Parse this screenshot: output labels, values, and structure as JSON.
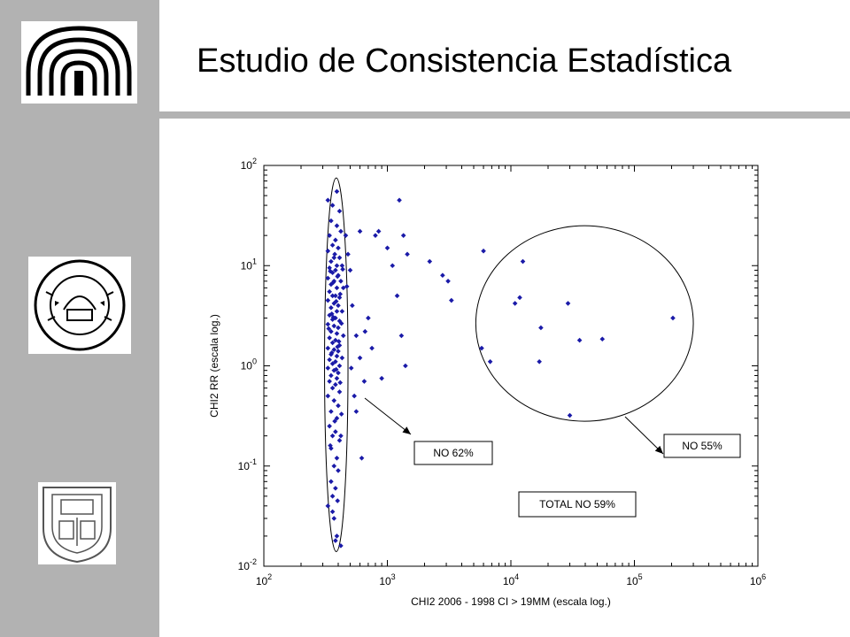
{
  "slide": {
    "title": "Estudio de Consistencia Estadística",
    "logos": [
      "dome-logo-icon",
      "ucv-seal-icon",
      "ucab-seal-icon"
    ]
  },
  "colors": {
    "sidebar": "#b2b2b2",
    "marker": "#1a1aa8",
    "text": "#000000"
  },
  "chart_data": {
    "type": "scatter",
    "xlabel": "CHI2 2006 - 1998 CI > 19MM (escala log.)",
    "ylabel": "CHI2 RR (escala log.)",
    "xscale": "log",
    "yscale": "log",
    "xlim": [
      100,
      1000000
    ],
    "ylim": [
      0.01,
      100
    ],
    "x_ticks": [
      {
        "value": 100,
        "base": "10",
        "exp": "2"
      },
      {
        "value": 1000,
        "base": "10",
        "exp": "3"
      },
      {
        "value": 10000,
        "base": "10",
        "exp": "4"
      },
      {
        "value": 100000,
        "base": "10",
        "exp": "5"
      },
      {
        "value": 1000000,
        "base": "10",
        "exp": "6"
      }
    ],
    "y_ticks": [
      {
        "value": 0.01,
        "base": "10",
        "exp": "-2"
      },
      {
        "value": 0.1,
        "base": "10",
        "exp": "-1"
      },
      {
        "value": 1,
        "base": "10",
        "exp": "0"
      },
      {
        "value": 10,
        "base": "10",
        "exp": "1"
      },
      {
        "value": 100,
        "base": "10",
        "exp": "2"
      }
    ],
    "grid": false,
    "annotations": {
      "cluster_left_label": "NO 62%",
      "cluster_right_label": "NO 55%",
      "total_label": "TOTAL NO 59%"
    },
    "ellipses": [
      {
        "name": "cluster-left",
        "cx": 380,
        "cy": 1.1,
        "x_min": 310,
        "x_max": 480,
        "y_min": 0.014,
        "y_max": 75
      },
      {
        "name": "cluster-right",
        "cx": 28000,
        "cy": 2.6,
        "x_min": 5200,
        "x_max": 300000,
        "y_min": 0.28,
        "y_max": 25
      }
    ],
    "points": [
      [
        390,
        55
      ],
      [
        330,
        45
      ],
      [
        360,
        40
      ],
      [
        410,
        35
      ],
      [
        350,
        28
      ],
      [
        390,
        25
      ],
      [
        420,
        22
      ],
      [
        340,
        20
      ],
      [
        380,
        18
      ],
      [
        360,
        16
      ],
      [
        400,
        15
      ],
      [
        330,
        14
      ],
      [
        370,
        12
      ],
      [
        410,
        12
      ],
      [
        350,
        11
      ],
      [
        390,
        10
      ],
      [
        430,
        10
      ],
      [
        340,
        9.5
      ],
      [
        380,
        9
      ],
      [
        360,
        8.5
      ],
      [
        400,
        8
      ],
      [
        330,
        7.5
      ],
      [
        370,
        7
      ],
      [
        420,
        7
      ],
      [
        350,
        6.5
      ],
      [
        390,
        6
      ],
      [
        440,
        6
      ],
      [
        340,
        5.5
      ],
      [
        380,
        5
      ],
      [
        360,
        5
      ],
      [
        410,
        4.8
      ],
      [
        330,
        4.5
      ],
      [
        370,
        4.2
      ],
      [
        400,
        4
      ],
      [
        350,
        3.8
      ],
      [
        390,
        3.5
      ],
      [
        430,
        3.5
      ],
      [
        340,
        3.2
      ],
      [
        380,
        3
      ],
      [
        360,
        2.9
      ],
      [
        410,
        2.8
      ],
      [
        330,
        2.6
      ],
      [
        370,
        2.5
      ],
      [
        400,
        2.4
      ],
      [
        350,
        2.2
      ],
      [
        390,
        2.1
      ],
      [
        440,
        2
      ],
      [
        340,
        1.9
      ],
      [
        380,
        1.8
      ],
      [
        360,
        1.7
      ],
      [
        410,
        1.6
      ],
      [
        330,
        1.5
      ],
      [
        370,
        1.45
      ],
      [
        400,
        1.4
      ],
      [
        350,
        1.3
      ],
      [
        390,
        1.25
      ],
      [
        430,
        1.2
      ],
      [
        340,
        1.15
      ],
      [
        380,
        1.1
      ],
      [
        360,
        1.05
      ],
      [
        410,
        1
      ],
      [
        330,
        0.95
      ],
      [
        370,
        0.9
      ],
      [
        400,
        0.85
      ],
      [
        350,
        0.8
      ],
      [
        390,
        0.75
      ],
      [
        340,
        0.7
      ],
      [
        380,
        0.65
      ],
      [
        360,
        0.6
      ],
      [
        410,
        0.55
      ],
      [
        330,
        0.5
      ],
      [
        370,
        0.45
      ],
      [
        400,
        0.4
      ],
      [
        350,
        0.35
      ],
      [
        390,
        0.3
      ],
      [
        340,
        0.25
      ],
      [
        380,
        0.22
      ],
      [
        360,
        0.2
      ],
      [
        410,
        0.18
      ],
      [
        350,
        0.15
      ],
      [
        390,
        0.12
      ],
      [
        370,
        0.1
      ],
      [
        400,
        0.09
      ],
      [
        350,
        0.07
      ],
      [
        380,
        0.06
      ],
      [
        360,
        0.05
      ],
      [
        330,
        0.04
      ],
      [
        370,
        0.03
      ],
      [
        390,
        0.02
      ],
      [
        380,
        0.018
      ],
      [
        420,
        0.016
      ],
      [
        360,
        0.035
      ],
      [
        395,
        0.045
      ],
      [
        345,
        0.16
      ],
      [
        375,
        0.28
      ],
      [
        425,
        0.33
      ],
      [
        355,
        3.3
      ],
      [
        385,
        4.4
      ],
      [
        415,
        5.2
      ],
      [
        365,
        6.8
      ],
      [
        395,
        7.8
      ],
      [
        345,
        8.8
      ],
      [
        435,
        9.2
      ],
      [
        375,
        13
      ],
      [
        405,
        1.75
      ],
      [
        335,
        2.35
      ],
      [
        425,
        2.65
      ],
      [
        365,
        3.05
      ],
      [
        395,
        1.55
      ],
      [
        355,
        1.35
      ],
      [
        385,
        0.92
      ],
      [
        415,
        0.68
      ],
      [
        460,
        20
      ],
      [
        500,
        9
      ],
      [
        520,
        4
      ],
      [
        560,
        2
      ],
      [
        600,
        1.2
      ],
      [
        650,
        0.7
      ],
      [
        700,
        3
      ],
      [
        750,
        1.5
      ],
      [
        800,
        20
      ],
      [
        850,
        22
      ],
      [
        900,
        0.75
      ],
      [
        1000,
        15
      ],
      [
        1100,
        10
      ],
      [
        1200,
        5
      ],
      [
        1300,
        2
      ],
      [
        1400,
        1
      ],
      [
        1250,
        45
      ],
      [
        1350,
        20
      ],
      [
        1450,
        13
      ],
      [
        2200,
        11
      ],
      [
        2800,
        8
      ],
      [
        3100,
        7
      ],
      [
        3300,
        4.5
      ],
      [
        620,
        0.12
      ],
      [
        540,
        0.5
      ],
      [
        480,
        13
      ],
      [
        470,
        6.2
      ],
      [
        510,
        0.95
      ],
      [
        600,
        22
      ],
      [
        420,
        0.2
      ],
      [
        560,
        0.35
      ],
      [
        660,
        2.2
      ],
      [
        6000,
        14
      ],
      [
        12500,
        11
      ],
      [
        10800,
        4.2
      ],
      [
        11800,
        4.8
      ],
      [
        29000,
        4.2
      ],
      [
        17500,
        2.4
      ],
      [
        5800,
        1.5
      ],
      [
        6800,
        1.1
      ],
      [
        17000,
        1.1
      ],
      [
        36000,
        1.8
      ],
      [
        55000,
        1.85
      ],
      [
        205000,
        3.0
      ],
      [
        30000,
        0.32
      ]
    ]
  }
}
